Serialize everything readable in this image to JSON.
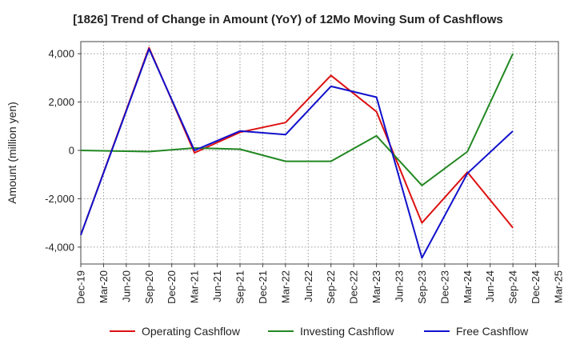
{
  "chart_data": {
    "type": "line",
    "title": "[1826]  Trend of Change in Amount (YoY) of 12Mo Moving Sum of Cashflows",
    "xlabel": "",
    "ylabel": "Amount (million yen)",
    "categories": [
      "Dec-19",
      "Mar-20",
      "Jun-20",
      "Sep-20",
      "Dec-20",
      "Mar-21",
      "Jun-21",
      "Sep-21",
      "Dec-21",
      "Mar-22",
      "Jun-22",
      "Sep-22",
      "Dec-22",
      "Mar-23",
      "Jun-23",
      "Sep-23",
      "Dec-23",
      "Mar-24",
      "Jun-24",
      "Sep-24",
      "Dec-24",
      "Mar-25"
    ],
    "ylim": [
      -4700,
      4500
    ],
    "yticks": [
      -4000,
      -2000,
      0,
      2000,
      4000
    ],
    "ytick_labels": [
      "-4,000",
      "-2,000",
      "0",
      "2,000",
      "4,000"
    ],
    "grid": true,
    "legend_position": "bottom",
    "series": [
      {
        "name": "Operating Cashflow",
        "color": "#dd1111",
        "values": [
          -3500,
          null,
          null,
          4250,
          null,
          -100,
          null,
          750,
          null,
          1150,
          null,
          3100,
          null,
          1600,
          null,
          -3000,
          null,
          -900,
          null,
          -3200,
          null,
          null
        ]
      },
      {
        "name": "Investing Cashflow",
        "color": "#228822",
        "values": [
          0,
          null,
          null,
          -50,
          null,
          100,
          null,
          50,
          null,
          -450,
          null,
          -450,
          null,
          600,
          null,
          -1450,
          null,
          -50,
          null,
          4000,
          null,
          null
        ]
      },
      {
        "name": "Free Cashflow",
        "color": "#1111cc",
        "values": [
          -3500,
          null,
          null,
          4200,
          null,
          0,
          null,
          800,
          null,
          650,
          null,
          2650,
          null,
          2200,
          null,
          -4450,
          null,
          -950,
          null,
          800,
          null,
          null
        ]
      }
    ]
  }
}
